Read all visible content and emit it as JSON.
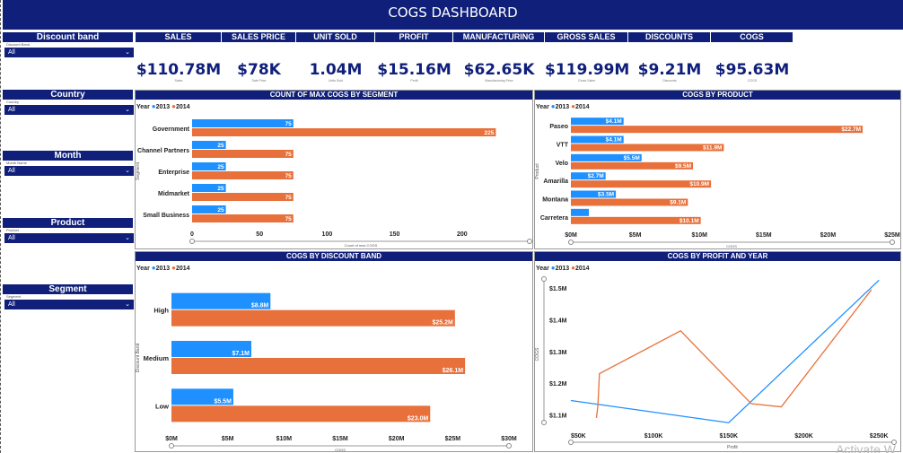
{
  "title": "COGS DASHBOARD",
  "slicers": [
    {
      "title": "Discount band",
      "field": "Discount Band",
      "value": "All"
    },
    {
      "title": "Country",
      "field": "Country",
      "value": "All"
    },
    {
      "title": "Month",
      "field": "Month Name",
      "value": "All"
    },
    {
      "title": "Product",
      "field": "Product",
      "value": "All"
    },
    {
      "title": "Segment",
      "field": "Segment",
      "value": "All"
    }
  ],
  "kpi_tabs": [
    "SALES",
    "SALES PRICE",
    "UNIT SOLD",
    "PROFIT",
    "MANUFACTURING PRICE",
    "GROSS SALES",
    "DISCOUNTS",
    "COGS"
  ],
  "kpis": [
    {
      "value": "$110.78M",
      "caption": "Sales"
    },
    {
      "value": "$78K",
      "caption": "Sale Price"
    },
    {
      "value": "1.04M",
      "caption": "Units Sold"
    },
    {
      "value": "$15.16M",
      "caption": "Profit"
    },
    {
      "value": "$62.65K",
      "caption": "Manufacturing Price"
    },
    {
      "value": "$119.99M",
      "caption": "Gross Sales"
    },
    {
      "value": "$9.21M",
      "caption": "Discounts"
    },
    {
      "value": "$95.63M",
      "caption": "COGS"
    }
  ],
  "legend": {
    "label": "Year",
    "series": [
      "2013",
      "2014"
    ]
  },
  "colors": {
    "navy": "#0f1f7a",
    "y2013": "#1e90ff",
    "y2014": "#e8703a"
  },
  "watermark": "Activate W",
  "chart_data": [
    {
      "type": "bar",
      "title": "COUNT OF MAX COGS BY SEGMENT",
      "ylabel": "Segment",
      "xlabel": "Count of max COGS",
      "categories": [
        "Government",
        "Channel Partners",
        "Enterprise",
        "Midmarket",
        "Small Business"
      ],
      "series": [
        {
          "name": "2013",
          "values": [
            75,
            25,
            25,
            25,
            25
          ],
          "labels": [
            "75",
            "25",
            "25",
            "25",
            "25"
          ]
        },
        {
          "name": "2014",
          "values": [
            225,
            75,
            75,
            75,
            75
          ],
          "labels": [
            "225",
            "75",
            "75",
            "75",
            "75"
          ]
        }
      ],
      "xticks": [
        "0",
        "50",
        "100",
        "150",
        "200"
      ],
      "xtick_values": [
        0,
        50,
        100,
        150,
        200
      ],
      "xlim": [
        0,
        250
      ]
    },
    {
      "type": "bar",
      "title": "COGS BY PRODUCT",
      "ylabel": "Product",
      "xlabel": "COGS",
      "categories": [
        "Paseo",
        "VTT",
        "Velo",
        "Amarilla",
        "Montana",
        "Carretera"
      ],
      "series": [
        {
          "name": "2013",
          "values": [
            4.1,
            4.1,
            5.5,
            2.7,
            3.5,
            1.4
          ],
          "labels": [
            "$4.1M",
            "$4.1M",
            "$5.5M",
            "$2.7M",
            "$3.5M",
            ""
          ]
        },
        {
          "name": "2014",
          "values": [
            22.7,
            11.9,
            9.5,
            10.9,
            9.1,
            10.1
          ],
          "labels": [
            "$22.7M",
            "$11.9M",
            "$9.5M",
            "$10.9M",
            "$9.1M",
            "$10.1M"
          ]
        }
      ],
      "xticks": [
        "$0M",
        "$5M",
        "$10M",
        "$15M",
        "$20M",
        "$25M"
      ],
      "xtick_values": [
        0,
        5,
        10,
        15,
        20,
        25
      ],
      "xlim": [
        0,
        25
      ]
    },
    {
      "type": "bar",
      "title": "COGS BY DISCOUNT BAND",
      "ylabel": "Discount Band",
      "xlabel": "COGS",
      "categories": [
        "High",
        "Medium",
        "Low"
      ],
      "series": [
        {
          "name": "2013",
          "values": [
            8.8,
            7.1,
            5.5
          ],
          "labels": [
            "$8.8M",
            "$7.1M",
            "$5.5M"
          ]
        },
        {
          "name": "2014",
          "values": [
            25.2,
            26.1,
            23.0
          ],
          "labels": [
            "$25.2M",
            "$26.1M",
            "$23.0M"
          ]
        }
      ],
      "xticks": [
        "$0M",
        "$5M",
        "$10M",
        "$15M",
        "$20M",
        "$25M",
        "$30M"
      ],
      "xtick_values": [
        0,
        5,
        10,
        15,
        20,
        25,
        30
      ],
      "xlim": [
        0,
        30
      ]
    },
    {
      "type": "line",
      "title": "COGS BY PROFIT AND YEAR",
      "ylabel": "COGS",
      "xlabel": "Profit",
      "yticks": [
        "$1.1M",
        "$1.2M",
        "$1.3M",
        "$1.4M",
        "$1.5M"
      ],
      "ytick_values": [
        1.1,
        1.2,
        1.3,
        1.4,
        1.5
      ],
      "xticks": [
        "$50K",
        "$100K",
        "$150K",
        "$200K",
        "$250K"
      ],
      "xtick_values": [
        50,
        100,
        150,
        200,
        250
      ],
      "xlim": [
        45,
        260
      ],
      "ylim": [
        1.07,
        1.54
      ],
      "series": [
        {
          "name": "2013",
          "x": [
            45,
            150,
            250
          ],
          "y": [
            1.145,
            1.075,
            1.525
          ]
        },
        {
          "name": "2014",
          "x": [
            62,
            63,
            64,
            118,
            165,
            185,
            245
          ],
          "y": [
            1.09,
            1.13,
            1.23,
            1.365,
            1.135,
            1.125,
            1.495
          ]
        }
      ]
    }
  ]
}
